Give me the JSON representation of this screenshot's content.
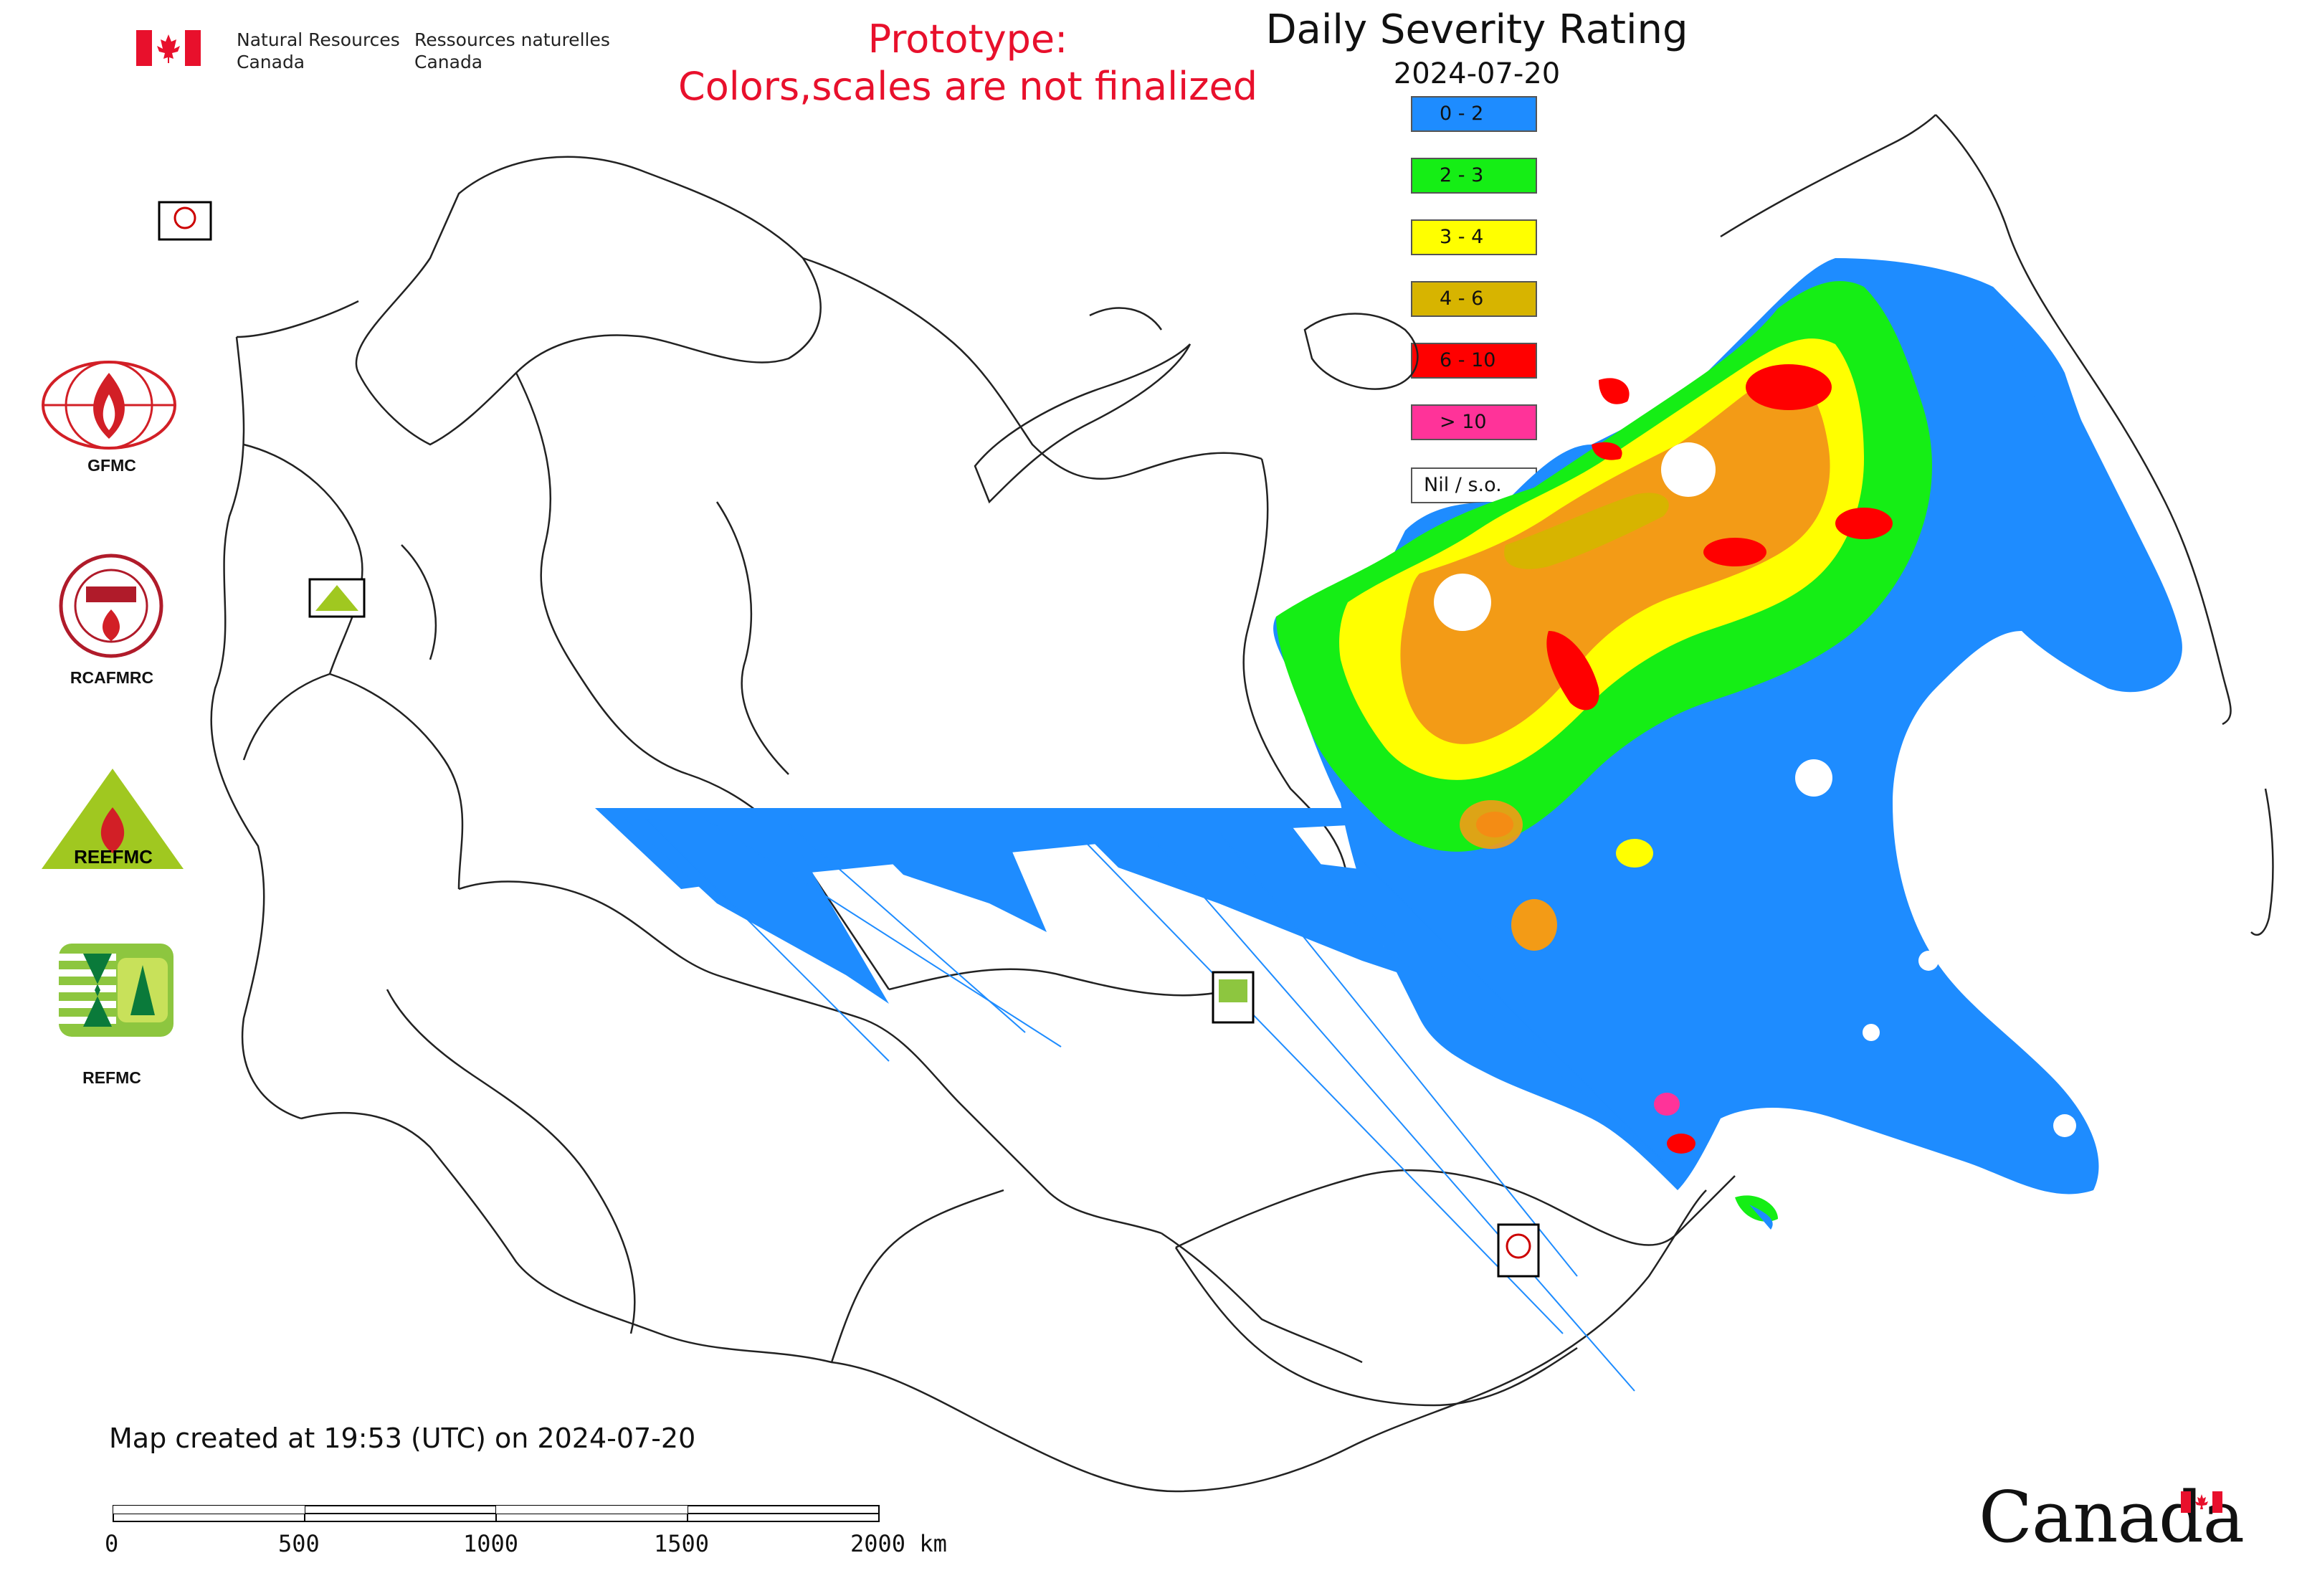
{
  "header": {
    "org_en_line1": "Natural Resources",
    "org_en_line2": "Canada",
    "org_fr_line1": "Ressources naturelles",
    "org_fr_line2": "Canada",
    "prototype_line1": "Prototype:",
    "prototype_line2": "Colors,scales are not finalized",
    "prototype_color": "#e8102c"
  },
  "map": {
    "title": "Daily Severity Rating",
    "date": "2024-07-20",
    "created_text": "Map created at 19:53 (UTC) on 2024-07-20"
  },
  "legend": [
    {
      "label": "0 - 2",
      "color": "#1e8cff"
    },
    {
      "label": "2 - 3",
      "color": "#15ee15"
    },
    {
      "label": "3 - 4",
      "color": "#ffff00"
    },
    {
      "label": "4 - 6",
      "color": "#d7b400"
    },
    {
      "label": "6 - 10",
      "color": "#ff0000"
    },
    {
      "label": "> 10",
      "color": "#ff3399"
    },
    {
      "label": "Nil / s.o.",
      "color": "#ffffff"
    }
  ],
  "logos": [
    {
      "label": "GFMC",
      "icon": "gfmc-logo-icon"
    },
    {
      "label": "RCAFMRC",
      "icon": "rcafmrc-logo-icon"
    },
    {
      "label": "",
      "icon": "reefmc-logo-icon",
      "wordmark": "REEFMC"
    },
    {
      "label": "REFMC",
      "icon": "refmc-logo-icon"
    }
  ],
  "scale_bar": {
    "labels": [
      "0",
      "500",
      "1000",
      "1500",
      "2000 km"
    ]
  },
  "footer": {
    "wordmark": "Canada"
  }
}
